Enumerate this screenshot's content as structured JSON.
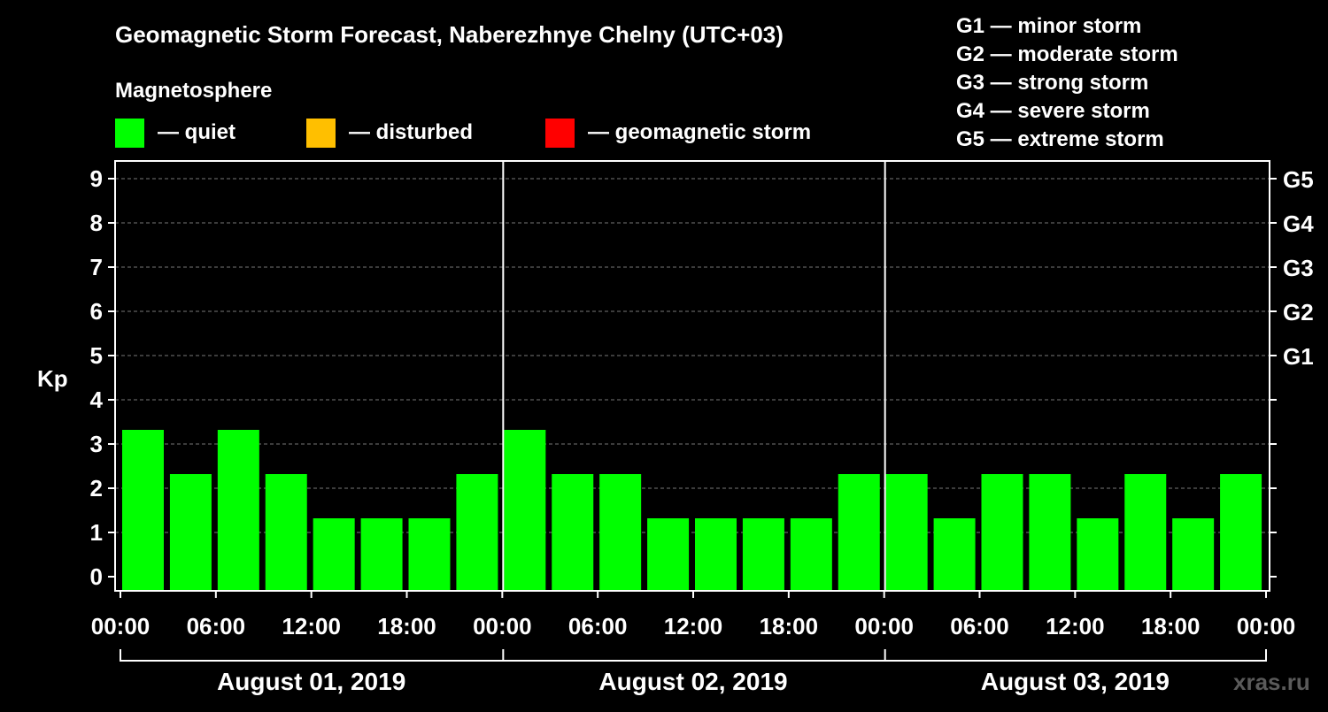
{
  "chart_data": {
    "type": "bar",
    "title": "Geomagnetic Storm Forecast, Naberezhnye Chelny (UTC+03)",
    "legend_title": "Magnetosphere",
    "legend": [
      {
        "label": "— quiet",
        "color": "#00ff00"
      },
      {
        "label": "— disturbed",
        "color": "#ffbf00"
      },
      {
        "label": "— geomagnetic storm",
        "color": "#ff0000"
      }
    ],
    "storm_scale": [
      "G1 — minor storm",
      "G2 — moderate storm",
      "G3 — strong storm",
      "G4 — severe storm",
      "G5 — extreme storm"
    ],
    "ylabel": "Kp",
    "ylim": [
      0,
      9
    ],
    "y_ticks": [
      "0",
      "1",
      "2",
      "3",
      "4",
      "5",
      "6",
      "7",
      "8",
      "9"
    ],
    "right_ticks": [
      {
        "kp": 5,
        "label": "G1"
      },
      {
        "kp": 6,
        "label": "G2"
      },
      {
        "kp": 7,
        "label": "G3"
      },
      {
        "kp": 8,
        "label": "G4"
      },
      {
        "kp": 9,
        "label": "G5"
      }
    ],
    "x_tick_labels": [
      "00:00",
      "06:00",
      "12:00",
      "18:00",
      "00:00",
      "06:00",
      "12:00",
      "18:00",
      "00:00",
      "06:00",
      "12:00",
      "18:00",
      "00:00"
    ],
    "days": [
      "August 01, 2019",
      "August 02, 2019",
      "August 03, 2019"
    ],
    "interval_hours": 3,
    "series": [
      {
        "name": "Kp",
        "values": [
          3,
          2,
          3,
          2,
          1,
          1,
          1,
          2,
          3,
          2,
          2,
          1,
          1,
          1,
          1,
          2,
          2,
          1,
          2,
          2,
          1,
          2,
          1,
          2
        ],
        "status": [
          "quiet",
          "quiet",
          "quiet",
          "quiet",
          "quiet",
          "quiet",
          "quiet",
          "quiet",
          "quiet",
          "quiet",
          "quiet",
          "quiet",
          "quiet",
          "quiet",
          "quiet",
          "quiet",
          "quiet",
          "quiet",
          "quiet",
          "quiet",
          "quiet",
          "quiet",
          "quiet",
          "quiet"
        ]
      }
    ],
    "status_colors": {
      "quiet": "#00ff00",
      "disturbed": "#ffbf00",
      "storm": "#ff0000"
    },
    "watermark": "xras.ru"
  }
}
